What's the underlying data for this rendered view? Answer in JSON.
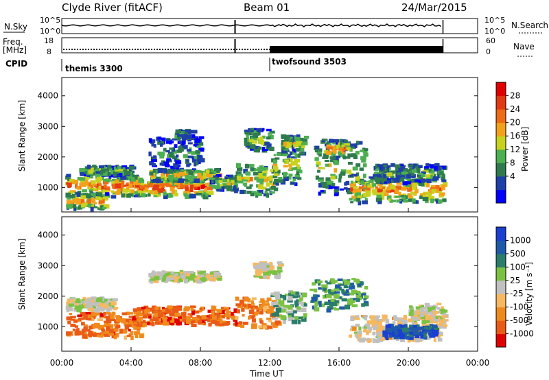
{
  "chart_data": {
    "type": "heatmap",
    "header": {
      "station": "Clyde River (fitACF)",
      "beam": "Beam 01",
      "date": "24/Mar/2015"
    },
    "time_axis": {
      "label": "Time UT",
      "range_hours": [
        0,
        24
      ],
      "ticks": [
        "00:00",
        "04:00",
        "08:00",
        "12:00",
        "16:00",
        "20:00",
        "00:00"
      ],
      "data_end_hours": 22
    },
    "nsky_panel": {
      "label": "N.Sky",
      "right_label": "N.Search",
      "left_ticks": [
        "10^5",
        "10^0"
      ],
      "right_ticks": [
        "10^5",
        "10^0"
      ],
      "break_hours": 10
    },
    "freq_panel": {
      "label_line1": "Freq.",
      "label_line2": "[MHz]",
      "right_label": "Nave",
      "left_ticks": [
        "18",
        "8"
      ],
      "right_ticks": [
        "60",
        "0"
      ],
      "break_hours": 10,
      "nave_rise_hours": 12
    },
    "cpid": {
      "label": "CPID",
      "programs": [
        {
          "name": "themis 3300",
          "start_hours": 0
        },
        {
          "name": "twofsound 3503",
          "start_hours": 12
        }
      ]
    },
    "range_axis": {
      "label": "Slant Range [km]",
      "range_km": [
        200,
        4600
      ],
      "ticks": [
        "1000",
        "2000",
        "3000",
        "4000"
      ]
    },
    "power_panel": {
      "colorbar_label": "Power [dB]",
      "ticks": [
        "4",
        "8",
        "12",
        "16",
        "20",
        "24",
        "28"
      ],
      "colors": [
        "#0000ff",
        "#1e3fa8",
        "#2f7a4e",
        "#4caf50",
        "#c8d21e",
        "#f2a21a",
        "#ee6a14",
        "#e23a12",
        "#e10000"
      ]
    },
    "velocity_panel": {
      "colorbar_label": "Velocity [m s⁻¹]",
      "ticks": [
        "1000",
        "500",
        "100",
        "25",
        "-25",
        "-100",
        "-500",
        "-1000"
      ],
      "colors": [
        "#1a3fd1",
        "#1f5aa8",
        "#2a7c6b",
        "#7cc242",
        "#c0c0c0",
        "#f6b860",
        "#ef8a1c",
        "#ea5a16",
        "#e10000"
      ]
    }
  }
}
